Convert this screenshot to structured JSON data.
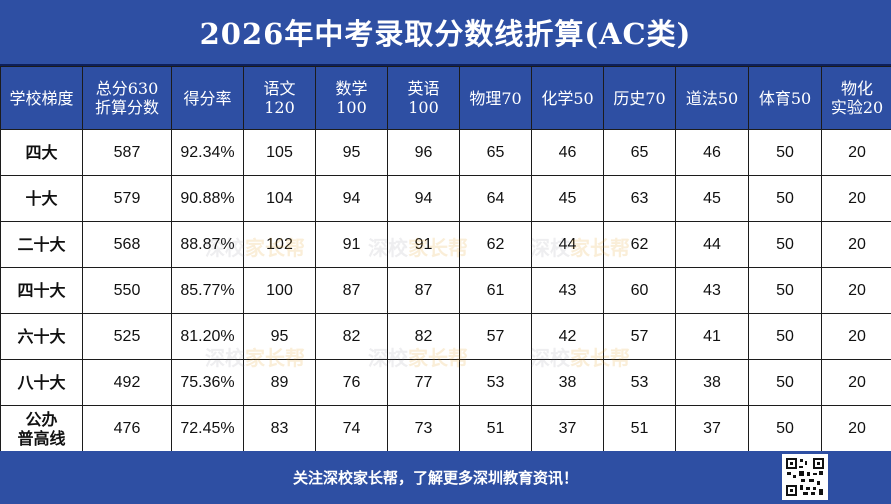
{
  "title": "2026年中考录取分数线折算(AC类)",
  "headers": [
    "学校梯度",
    "总分630\n折算分数",
    "得分率",
    "语文\n120",
    "数学\n100",
    "英语\n100",
    "物理70",
    "化学50",
    "历史70",
    "道法50",
    "体育50",
    "物化\n实验20"
  ],
  "rows": [
    [
      "四大",
      "587",
      "92.34%",
      "105",
      "95",
      "96",
      "65",
      "46",
      "65",
      "46",
      "50",
      "20"
    ],
    [
      "十大",
      "579",
      "90.88%",
      "104",
      "94",
      "94",
      "64",
      "45",
      "63",
      "45",
      "50",
      "20"
    ],
    [
      "二十大",
      "568",
      "88.87%",
      "102",
      "91",
      "91",
      "62",
      "44",
      "62",
      "44",
      "50",
      "20"
    ],
    [
      "四十大",
      "550",
      "85.77%",
      "100",
      "87",
      "87",
      "61",
      "43",
      "60",
      "43",
      "50",
      "20"
    ],
    [
      "六十大",
      "525",
      "81.20%",
      "95",
      "82",
      "82",
      "57",
      "42",
      "57",
      "41",
      "50",
      "20"
    ],
    [
      "八十大",
      "492",
      "75.36%",
      "89",
      "76",
      "77",
      "53",
      "38",
      "53",
      "38",
      "50",
      "20"
    ],
    [
      "公办\n普高线",
      "476",
      "72.45%",
      "83",
      "74",
      "73",
      "51",
      "37",
      "51",
      "37",
      "50",
      "20"
    ]
  ],
  "footer": "关注深校家长帮，了解更多深圳教育资讯！",
  "watermark": {
    "part1": "深校",
    "part2": "家长帮"
  },
  "colors": {
    "header_bg": "#2e4fa3",
    "header_text": "#ffffff",
    "border": "#1c1c1c"
  },
  "icons": {
    "qr": "qr-code-icon"
  }
}
